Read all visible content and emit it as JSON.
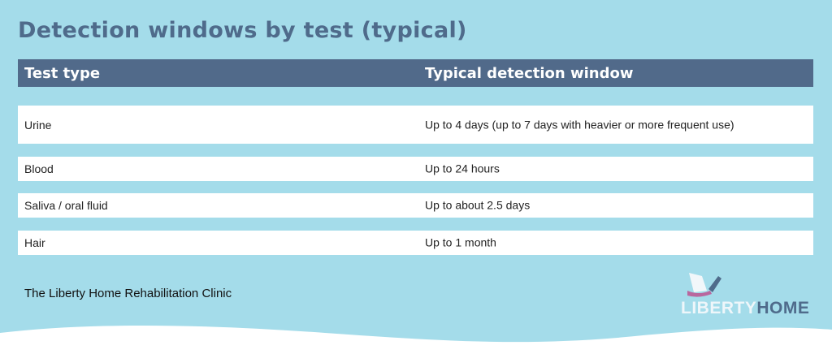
{
  "title": "Detection windows by test (typical)",
  "table": {
    "headers": [
      "Test type",
      "Typical detection window"
    ],
    "rows": [
      {
        "test": "Urine",
        "window": "Up to 4 days (up to 7 days with heavier or more frequent use)"
      },
      {
        "test": "Blood",
        "window": "Up to 24 hours"
      },
      {
        "test": "Saliva / oral fluid",
        "window": "Up to about 2.5 days"
      },
      {
        "test": "Hair",
        "window": "Up to 1 month"
      }
    ]
  },
  "footer": "The Liberty Home Rehabilitation Clinic",
  "logo": {
    "part1": "LIBERTY",
    "part2": "HOME"
  },
  "colors": {
    "background": "#a4dcea",
    "header": "#516a8a",
    "accent": "#b9679e"
  }
}
